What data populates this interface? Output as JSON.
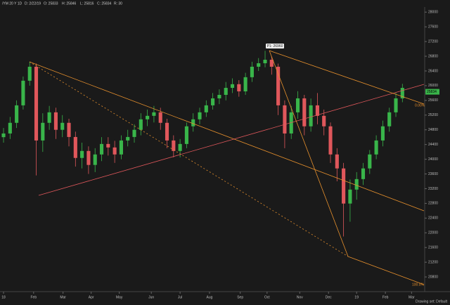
{
  "header": {
    "symbol": "/YM 20 Y 1D",
    "date": "D: 2/22/19",
    "open": "O: 25833",
    "high": "H: 25846",
    "low": "L: 25816",
    "close": "C: 25834",
    "range": "R: 30"
  },
  "footer": {
    "drawing_set": "Drawing set: Default"
  },
  "chart_data": {
    "type": "candlestick",
    "x": [
      0,
      1,
      2,
      3,
      4,
      5,
      6,
      7,
      8,
      9,
      10,
      11,
      12,
      13,
      14,
      15,
      16,
      17,
      18,
      19,
      20,
      21,
      22,
      23,
      24,
      25,
      26,
      27,
      28,
      29,
      30,
      31,
      32,
      33,
      34,
      35,
      36,
      37,
      38,
      39,
      40,
      41,
      42,
      43,
      44,
      45,
      46,
      47,
      48,
      49,
      50,
      51,
      52,
      53,
      54,
      55,
      56,
      57,
      58,
      59,
      60,
      61
    ],
    "open": [
      24600,
      24700,
      24990,
      25465,
      26135,
      26515,
      24510,
      24990,
      25275,
      24800,
      24990,
      24605,
      24035,
      24225,
      23845,
      24130,
      24415,
      24320,
      24130,
      24510,
      24605,
      24800,
      25085,
      25180,
      25275,
      24990,
      24510,
      24225,
      24415,
      24895,
      25085,
      25275,
      25465,
      25655,
      25750,
      25940,
      26040,
      25845,
      26230,
      26515,
      26610,
      26705,
      26515,
      25465,
      24700,
      25275,
      25655,
      24895,
      25465,
      25180,
      24895,
      24130,
      23750,
      22795,
      23175,
      23460,
      23750,
      24130,
      24510,
      24895,
      25275,
      25655
    ],
    "high": [
      24850,
      25150,
      25600,
      26250,
      26650,
      26600,
      25250,
      25450,
      25400,
      25200,
      25100,
      24750,
      24450,
      24350,
      24300,
      24600,
      24600,
      24500,
      24650,
      24800,
      24950,
      25250,
      25350,
      25450,
      25400,
      25100,
      24650,
      24550,
      25000,
      25250,
      25400,
      25600,
      25800,
      25900,
      26100,
      26200,
      26150,
      26350,
      26650,
      26750,
      26950,
      26800,
      26600,
      25600,
      25450,
      25850,
      25750,
      25650,
      25800,
      25350,
      25000,
      24300,
      23900,
      23450,
      23650,
      23900,
      24250,
      24650,
      25050,
      25400,
      25800,
      26050
    ],
    "low": [
      24450,
      24550,
      24850,
      25350,
      26000,
      23560,
      24200,
      24800,
      24550,
      24600,
      24350,
      23800,
      23750,
      23600,
      23650,
      23950,
      24100,
      23900,
      24000,
      24350,
      24450,
      24650,
      24900,
      25000,
      24800,
      24300,
      24050,
      24050,
      24300,
      24750,
      24950,
      25150,
      25350,
      25500,
      25600,
      25800,
      25700,
      25750,
      26100,
      26400,
      26500,
      26300,
      25200,
      24300,
      24550,
      25100,
      24650,
      24750,
      24950,
      24650,
      23900,
      23400,
      21900,
      22300,
      22900,
      23300,
      23600,
      24000,
      24350,
      24750,
      25150,
      25550
    ],
    "close": [
      24700,
      24990,
      25465,
      26135,
      26515,
      24510,
      24990,
      25275,
      24800,
      24990,
      24605,
      24035,
      24225,
      23845,
      24130,
      24415,
      24320,
      24130,
      24510,
      24605,
      24800,
      25085,
      25180,
      25275,
      24990,
      24510,
      24225,
      24415,
      24895,
      25085,
      25275,
      25465,
      25655,
      25750,
      25940,
      26040,
      25845,
      26230,
      26515,
      26610,
      26705,
      26515,
      25465,
      24700,
      25275,
      25655,
      24895,
      25465,
      25180,
      24895,
      24130,
      23750,
      22795,
      23175,
      23460,
      23750,
      24130,
      24510,
      24895,
      25275,
      25655,
      25940
    ],
    "up_color": "#39b54a",
    "down_color": "#e0575b",
    "xlim": [
      -0.54,
      64.3
    ],
    "xticks": [
      {
        "value": 0,
        "label": "18"
      },
      {
        "value": 4.6,
        "label": "Feb"
      },
      {
        "value": 9.1,
        "label": "Mar"
      },
      {
        "value": 13.4,
        "label": "Apr"
      },
      {
        "value": 17.7,
        "label": "May"
      },
      {
        "value": 22.6,
        "label": "Jun"
      },
      {
        "value": 27,
        "label": "Jul"
      },
      {
        "value": 31.5,
        "label": "Aug"
      },
      {
        "value": 36.2,
        "label": "Sep"
      },
      {
        "value": 40.3,
        "label": "Oct"
      },
      {
        "value": 45.3,
        "label": "Nov"
      },
      {
        "value": 49.7,
        "label": "Dec"
      },
      {
        "value": 54,
        "label": "19"
      },
      {
        "value": 58.4,
        "label": "Feb"
      },
      {
        "value": 62.4,
        "label": "Mar"
      }
    ],
    "ylim": [
      20400,
      28100
    ],
    "yticks": [
      20800,
      21200,
      21600,
      22000,
      22400,
      22800,
      23200,
      23600,
      24000,
      24400,
      24800,
      25200,
      25600,
      26000,
      26400,
      26800,
      27200,
      27600,
      28000
    ],
    "last_price": 25834,
    "annotations": {
      "pivot": "P1: 26960",
      "fib_top": "0.00%",
      "fib_bottom": "100.0%"
    }
  }
}
